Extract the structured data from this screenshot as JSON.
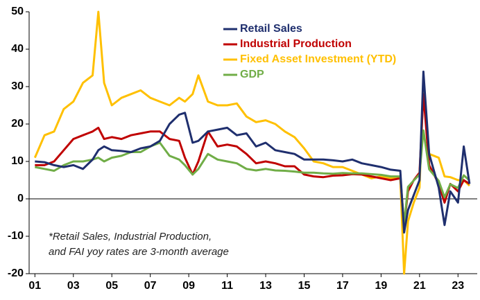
{
  "chart_data": {
    "type": "line",
    "x": [
      2001.0,
      2001.5,
      2002.0,
      2002.5,
      2003.0,
      2003.5,
      2004.0,
      2004.3,
      2004.6,
      2005.0,
      2005.5,
      2006.0,
      2006.5,
      2007.0,
      2007.5,
      2008.0,
      2008.5,
      2008.8,
      2009.2,
      2009.5,
      2010.0,
      2010.5,
      2011.0,
      2011.5,
      2012.0,
      2012.5,
      2013.0,
      2013.5,
      2014.0,
      2014.5,
      2015.0,
      2015.5,
      2016.0,
      2016.5,
      2017.0,
      2017.5,
      2018.0,
      2018.5,
      2019.0,
      2019.5,
      2020.0,
      2020.2,
      2020.4,
      2020.7,
      2021.0,
      2021.2,
      2021.5,
      2022.0,
      2022.3,
      2022.6,
      2023.0,
      2023.3,
      2023.6
    ],
    "series": [
      {
        "name": "Retail Sales",
        "color": "#1f2f6e",
        "values": [
          10,
          9.8,
          9,
          8.5,
          9,
          8,
          10.5,
          13,
          14,
          13,
          12.8,
          12.5,
          13.5,
          14,
          15.5,
          20,
          22.5,
          23,
          15,
          15.5,
          18,
          18.5,
          19,
          17,
          17.5,
          14,
          15,
          13,
          12.5,
          12,
          10.5,
          10.5,
          10.5,
          10.3,
          10,
          10.5,
          9.5,
          9,
          8.5,
          7.8,
          7.5,
          -9,
          -3,
          1,
          5,
          34,
          12,
          3,
          -7,
          2,
          -1,
          14,
          4
        ]
      },
      {
        "name": "Industrial Production",
        "color": "#c00000",
        "values": [
          9,
          9,
          10,
          13,
          16,
          17,
          18,
          19,
          16,
          16.5,
          16,
          17,
          17.5,
          18,
          18,
          16,
          15.5,
          11,
          6.5,
          10,
          18,
          14,
          14.5,
          14,
          12,
          9.5,
          10,
          9.5,
          8.7,
          8.7,
          6.5,
          6,
          5.8,
          6.2,
          6.3,
          6.6,
          6.5,
          6,
          5.5,
          5,
          5.5,
          -7,
          2,
          5,
          7,
          28,
          9,
          4,
          -1,
          4,
          2,
          5,
          4
        ]
      },
      {
        "name": "Fixed Asset Investment (YTD)",
        "color": "#ffc000",
        "values": [
          11,
          17,
          18,
          24,
          26,
          31,
          33,
          50,
          31,
          25,
          27,
          28,
          29,
          27,
          26,
          25,
          27,
          26,
          28,
          33,
          26,
          25,
          25,
          25.5,
          22,
          20.5,
          21,
          20,
          18,
          16.5,
          13.5,
          10,
          9.5,
          8.5,
          8.5,
          7.5,
          6.5,
          5.5,
          6,
          5.5,
          5.5,
          -20,
          -6,
          -1,
          3,
          30,
          12,
          11,
          6,
          5.8,
          5,
          5,
          3.5
        ]
      },
      {
        "name": "GDP",
        "color": "#70ad47",
        "values": [
          8.5,
          8,
          7.5,
          9,
          10,
          10,
          10.5,
          11,
          10,
          11,
          11.5,
          12.5,
          12.5,
          14,
          15,
          11.5,
          10.5,
          9,
          6.5,
          8,
          12,
          10.5,
          10,
          9.5,
          8,
          7.6,
          8,
          7.6,
          7.5,
          7.3,
          7,
          7,
          6.8,
          6.7,
          6.9,
          6.8,
          6.8,
          6.6,
          6.4,
          6,
          6,
          -6.8,
          3.2,
          4.9,
          6.5,
          18.3,
          7.9,
          4.8,
          0.4,
          3.9,
          2.9,
          6.3,
          4.9
        ]
      }
    ],
    "xlim": [
      2000.7,
      2024
    ],
    "xticks": [
      {
        "value": 2001,
        "label": "01"
      },
      {
        "value": 2003,
        "label": "03"
      },
      {
        "value": 2005,
        "label": "05"
      },
      {
        "value": 2007,
        "label": "07"
      },
      {
        "value": 2009,
        "label": "09"
      },
      {
        "value": 2011,
        "label": "11"
      },
      {
        "value": 2013,
        "label": "13"
      },
      {
        "value": 2015,
        "label": "15"
      },
      {
        "value": 2017,
        "label": "17"
      },
      {
        "value": 2019,
        "label": "19"
      },
      {
        "value": 2021,
        "label": "21"
      },
      {
        "value": 2023,
        "label": "23"
      }
    ],
    "ylim": [
      -20,
      50
    ],
    "yticks": [
      -20,
      -10,
      0,
      10,
      20,
      30,
      40,
      50
    ],
    "annotation": [
      "*Retail Sales, Industrial Production,",
      "and FAI yoy rates are 3-month average"
    ],
    "grid": false
  }
}
